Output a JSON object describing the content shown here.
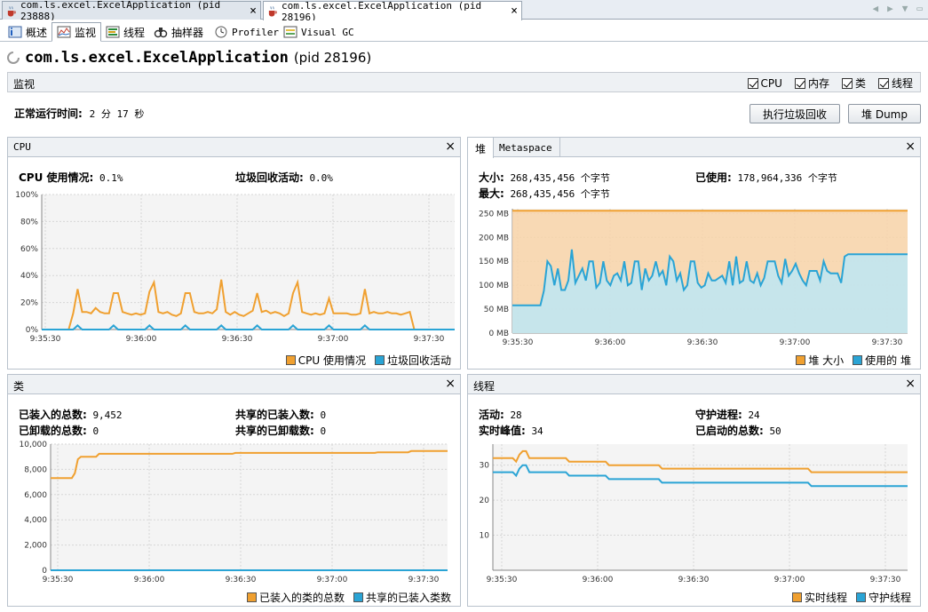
{
  "document_tabs": [
    {
      "label": "com.ls.excel.ExcelApplication (pid 23888)"
    },
    {
      "label": "com.ls.excel.ExcelApplication (pid 28196)"
    }
  ],
  "sub_tabs": [
    {
      "label": "概述"
    },
    {
      "label": "监视"
    },
    {
      "label": "线程"
    },
    {
      "label": "抽样器"
    },
    {
      "label": "Profiler"
    },
    {
      "label": "Visual GC"
    }
  ],
  "app": {
    "name": "com.ls.excel.ExcelApplication",
    "pid": "(pid 28196)"
  },
  "monitor": {
    "label": "监视",
    "checkboxes": [
      {
        "label": "CPU"
      },
      {
        "label": "内存"
      },
      {
        "label": "类"
      },
      {
        "label": "线程"
      }
    ]
  },
  "uptime": {
    "label": "正常运行时间:",
    "value": "2 分 17 秒"
  },
  "buttons": {
    "gc": "执行垃圾回收",
    "heap_dump": "堆 Dump"
  },
  "cpu_panel": {
    "title": "CPU",
    "usage_label": "CPU 使用情况:",
    "usage_value": "0.1%",
    "gc_label": "垃圾回收活动:",
    "gc_value": "0.0%",
    "legend": [
      "CPU 使用情况",
      "垃圾回收活动"
    ]
  },
  "heap_panel": {
    "tabs": [
      "堆",
      "Metaspace"
    ],
    "size_label": "大小:",
    "size_value": "268,435,456 个字节",
    "max_label": "最大:",
    "max_value": "268,435,456 个字节",
    "used_label": "已使用:",
    "used_value": "178,964,336 个字节",
    "legend": [
      "堆 大小",
      "使用的 堆"
    ]
  },
  "classes_panel": {
    "title": "类",
    "loaded_label": "已装入的总数:",
    "loaded_value": "9,452",
    "unloaded_label": "已卸载的总数:",
    "unloaded_value": "0",
    "shared_loaded_label": "共享的已装入数:",
    "shared_loaded_value": "0",
    "shared_unloaded_label": "共享的已卸载数:",
    "shared_unloaded_value": "0",
    "legend": [
      "已装入的类的总数",
      "共享的已装入类数"
    ]
  },
  "threads_panel": {
    "title": "线程",
    "live_label": "活动:",
    "live_value": "28",
    "peak_label": "实时峰值:",
    "peak_value": "34",
    "daemon_label": "守护进程:",
    "daemon_value": "24",
    "started_label": "已启动的总数:",
    "started_value": "50",
    "legend": [
      "实时线程",
      "守护线程"
    ]
  },
  "colors": {
    "orange": "#f0a030",
    "blue": "#2aa4d5",
    "orange_fill": "#f8d3a8",
    "blue_fill": "#bde6f5"
  },
  "chart_data": [
    {
      "type": "line",
      "name": "cpu",
      "x_ticks": [
        "9:35:30",
        "9:36:00",
        "9:36:30",
        "9:37:00",
        "9:37:30"
      ],
      "x": [
        0,
        3,
        6,
        9,
        12,
        15,
        18,
        21,
        24,
        27,
        30,
        33,
        36,
        39,
        42,
        45,
        48,
        51,
        54,
        57,
        60,
        63,
        66,
        69,
        72,
        75,
        78,
        81,
        84,
        87,
        90,
        93,
        96,
        99,
        102,
        105,
        108,
        111,
        114,
        117,
        120,
        123,
        126,
        129,
        132,
        135,
        138,
        141,
        144,
        147,
        150,
        153,
        156,
        159,
        162,
        165,
        168,
        171,
        174,
        177,
        180,
        183,
        186,
        189,
        192,
        195,
        198,
        201,
        204,
        207,
        210,
        213,
        216,
        219,
        222,
        225,
        228,
        231,
        234,
        237,
        240,
        243,
        246,
        249,
        252,
        255,
        258,
        261,
        264,
        267,
        270,
        273,
        276
      ],
      "series": [
        {
          "name": "CPU 使用情况",
          "values": [
            0,
            0,
            0,
            0,
            0,
            0,
            0,
            12,
            30,
            13,
            13,
            12,
            16,
            13,
            12,
            12,
            27,
            27,
            13,
            12,
            11,
            12,
            11,
            12,
            28,
            35,
            13,
            12,
            13,
            11,
            10,
            12,
            27,
            27,
            13,
            12,
            12,
            13,
            12,
            15,
            37,
            13,
            11,
            13,
            11,
            10,
            12,
            14,
            27,
            13,
            14,
            12,
            13,
            12,
            10,
            12,
            27,
            35,
            13,
            12,
            11,
            12,
            11,
            12,
            23,
            12,
            12,
            12,
            12,
            11,
            11,
            12,
            30,
            12,
            13,
            12,
            12,
            13,
            12,
            12,
            11,
            12,
            13,
            0,
            0,
            0,
            0,
            0,
            0,
            0,
            0,
            0,
            0
          ]
        },
        {
          "name": "垃圾回收活动",
          "values": [
            0,
            0,
            0,
            0,
            0,
            0,
            0,
            0,
            3,
            0,
            0,
            0,
            0,
            0,
            0,
            0,
            3,
            0,
            0,
            0,
            0,
            0,
            0,
            0,
            3,
            0,
            0,
            0,
            0,
            0,
            0,
            0,
            3,
            0,
            0,
            0,
            0,
            0,
            0,
            0,
            3,
            0,
            0,
            0,
            0,
            0,
            0,
            0,
            3,
            0,
            0,
            0,
            0,
            0,
            0,
            0,
            3,
            0,
            0,
            0,
            0,
            0,
            0,
            0,
            3,
            0,
            0,
            0,
            0,
            0,
            0,
            0,
            3,
            0,
            0,
            0,
            0,
            0,
            0,
            0,
            0,
            0,
            0,
            0,
            0,
            0,
            0,
            0,
            0,
            0,
            0,
            0,
            0
          ]
        }
      ],
      "y_ticks": [
        "0%",
        "20%",
        "40%",
        "60%",
        "80%",
        "100%"
      ],
      "ylim": [
        0,
        100
      ]
    },
    {
      "type": "area",
      "name": "heap",
      "x_ticks": [
        "9:35:30",
        "9:36:00",
        "9:36:30",
        "9:37:00",
        "9:37:30"
      ],
      "x": [
        0,
        8,
        9,
        10,
        11,
        12,
        13,
        14,
        15,
        16,
        17,
        18,
        19,
        20,
        21,
        22,
        23,
        24,
        25,
        26,
        27,
        28,
        29,
        30,
        31,
        32,
        33,
        34,
        35,
        36,
        37,
        38,
        39,
        40,
        41,
        42,
        43,
        44,
        45,
        46,
        47,
        48,
        49,
        50,
        51,
        52,
        53,
        54,
        55,
        56,
        57,
        58,
        59,
        60,
        61,
        62,
        63,
        64,
        65,
        66,
        67,
        68,
        69,
        70,
        71,
        72,
        73,
        74,
        75,
        76,
        77,
        78,
        79,
        80,
        81,
        82,
        83,
        84,
        85,
        86,
        87,
        88,
        89,
        90,
        91,
        92,
        93,
        94,
        95,
        96,
        97,
        98,
        99,
        100,
        101,
        102,
        103,
        104,
        105,
        106,
        107,
        108,
        109,
        110,
        111,
        112,
        113
      ],
      "series": [
        {
          "name": "堆 大小",
          "values": [
            256,
            256,
            256,
            256,
            256,
            256,
            256,
            256,
            256,
            256,
            256,
            256,
            256,
            256,
            256,
            256,
            256,
            256,
            256,
            256,
            256,
            256,
            256,
            256,
            256,
            256,
            256,
            256,
            256,
            256,
            256,
            256,
            256,
            256,
            256,
            256,
            256,
            256,
            256,
            256,
            256,
            256,
            256,
            256,
            256,
            256,
            256,
            256,
            256,
            256,
            256,
            256,
            256,
            256,
            256,
            256,
            256,
            256,
            256,
            256,
            256,
            256,
            256,
            256,
            256,
            256,
            256,
            256,
            256,
            256,
            256,
            256,
            256,
            256,
            256,
            256,
            256,
            256,
            256,
            256,
            256,
            256,
            256,
            256,
            256,
            256,
            256,
            256,
            256,
            256,
            256,
            256,
            256,
            256,
            256,
            256,
            256,
            256,
            256,
            256,
            256,
            256,
            256,
            256,
            256,
            256,
            256
          ]
        },
        {
          "name": "使用的 堆",
          "values": [
            58,
            58,
            88,
            150,
            140,
            100,
            135,
            90,
            90,
            110,
            175,
            105,
            120,
            135,
            110,
            150,
            150,
            95,
            105,
            150,
            110,
            100,
            120,
            125,
            110,
            150,
            100,
            105,
            150,
            150,
            90,
            135,
            110,
            120,
            150,
            120,
            130,
            100,
            160,
            150,
            110,
            125,
            90,
            100,
            150,
            150,
            105,
            95,
            100,
            125,
            110,
            110,
            115,
            120,
            105,
            150,
            100,
            160,
            105,
            110,
            150,
            110,
            105,
            125,
            100,
            115,
            150,
            150,
            150,
            120,
            105,
            155,
            120,
            130,
            145,
            125,
            110,
            100,
            130,
            130,
            130,
            110,
            150,
            130,
            125,
            125,
            125,
            105,
            160,
            165,
            165,
            165,
            165,
            165,
            165,
            165,
            165,
            165,
            165,
            165,
            165,
            165,
            165,
            165,
            165,
            165,
            165
          ]
        }
      ],
      "y_ticks": [
        "0 MB",
        "50 MB",
        "100 MB",
        "150 MB",
        "200 MB",
        "250 MB"
      ],
      "ylim": [
        0,
        260
      ]
    },
    {
      "type": "line",
      "name": "classes",
      "x_ticks": [
        "9:35:30",
        "9:36:00",
        "9:36:30",
        "9:37:00",
        "9:37:30"
      ],
      "series": [
        {
          "name": "已装入的类的总数",
          "values": [
            [
              0,
              7300
            ],
            [
              7,
              7300
            ],
            [
              8,
              7700
            ],
            [
              9,
              8800
            ],
            [
              10,
              9000
            ],
            [
              15,
              9000
            ],
            [
              16,
              9230
            ],
            [
              60,
              9230
            ],
            [
              61,
              9300
            ],
            [
              107,
              9300
            ],
            [
              108,
              9350
            ],
            [
              118,
              9350
            ],
            [
              119,
              9452
            ],
            [
              131,
              9452
            ]
          ]
        },
        {
          "name": "共享的已装入类数",
          "values": [
            [
              0,
              0
            ],
            [
              131,
              0
            ]
          ]
        }
      ],
      "y_ticks": [
        "0",
        "2,000",
        "4,000",
        "6,000",
        "8,000",
        "10,000"
      ],
      "ylim": [
        0,
        10000
      ]
    },
    {
      "type": "line",
      "name": "threads",
      "x_ticks": [
        "9:35:30",
        "9:36:00",
        "9:36:30",
        "9:37:00",
        "9:37:30"
      ],
      "series": [
        {
          "name": "实时线程",
          "values": [
            [
              0,
              32
            ],
            [
              6,
              32
            ],
            [
              7,
              31
            ],
            [
              8,
              33
            ],
            [
              9,
              34
            ],
            [
              10,
              34
            ],
            [
              11,
              32
            ],
            [
              22,
              32
            ],
            [
              23,
              31
            ],
            [
              34,
              31
            ],
            [
              35,
              30
            ],
            [
              50,
              30
            ],
            [
              51,
              29
            ],
            [
              95,
              29
            ],
            [
              96,
              28
            ],
            [
              125,
              28
            ]
          ]
        },
        {
          "name": "守护线程",
          "values": [
            [
              0,
              28
            ],
            [
              6,
              28
            ],
            [
              7,
              27
            ],
            [
              8,
              29
            ],
            [
              9,
              30
            ],
            [
              10,
              30
            ],
            [
              11,
              28
            ],
            [
              22,
              28
            ],
            [
              23,
              27
            ],
            [
              34,
              27
            ],
            [
              35,
              26
            ],
            [
              50,
              26
            ],
            [
              51,
              25
            ],
            [
              95,
              25
            ],
            [
              96,
              24
            ],
            [
              125,
              24
            ]
          ]
        }
      ],
      "y_ticks": [
        "10",
        "20",
        "30"
      ],
      "ylim": [
        0,
        36
      ]
    }
  ]
}
